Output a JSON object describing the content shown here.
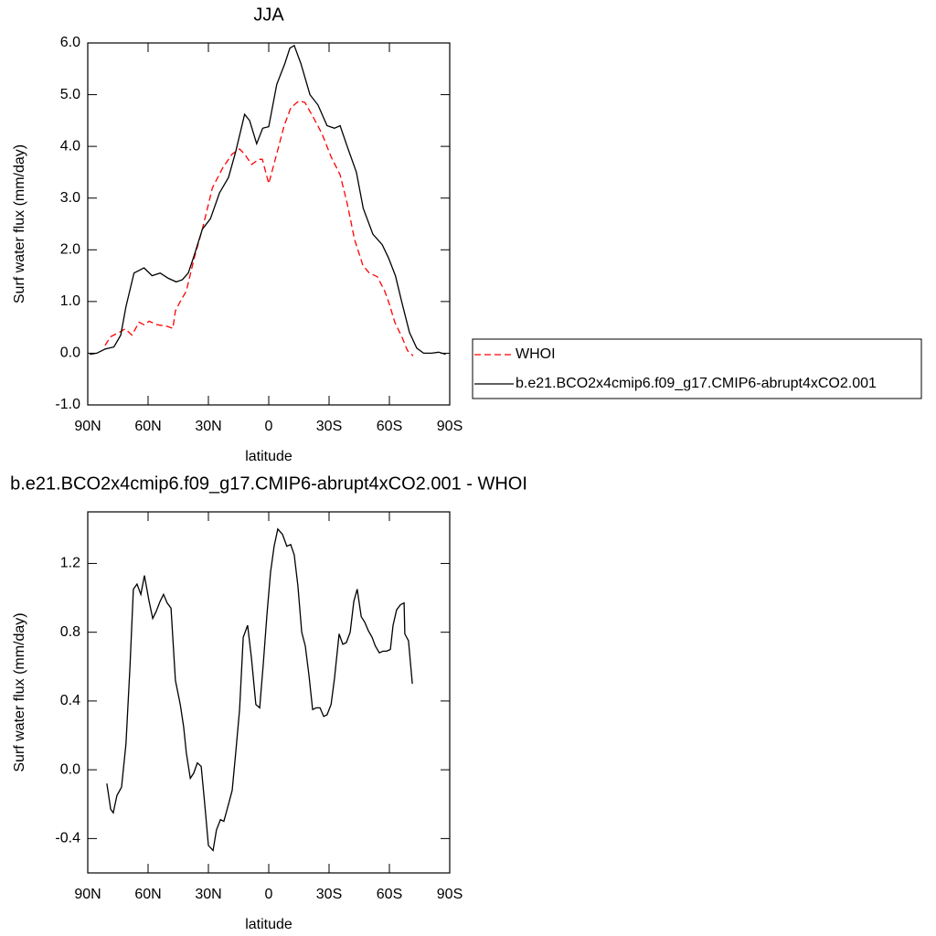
{
  "chart_data": [
    {
      "type": "line",
      "title": "JJA",
      "xlabel": "latitude",
      "ylabel": "Surf water flux (mm/day)",
      "xlim": [
        90,
        -90
      ],
      "xticks": [
        {
          "value": 90,
          "label": "90N"
        },
        {
          "value": 60,
          "label": "60N"
        },
        {
          "value": 30,
          "label": "30N"
        },
        0,
        {
          "value": -30,
          "label": "30S"
        },
        {
          "value": -60,
          "label": "60S"
        },
        {
          "value": -90,
          "label": "90S"
        }
      ],
      "ylim": [
        -1,
        6
      ],
      "yticks": [
        {
          "value": -1,
          "label": "-1.0"
        },
        {
          "value": 0,
          "label": "0.0"
        },
        {
          "value": 1,
          "label": "1.0"
        },
        {
          "value": 2,
          "label": "2.0"
        },
        {
          "value": 3,
          "label": "3.0"
        },
        {
          "value": 4,
          "label": "4.0"
        },
        {
          "value": 5,
          "label": "5.0"
        },
        {
          "value": 6,
          "label": "6.0"
        }
      ],
      "legend": "right",
      "series": [
        {
          "name": "WHOI",
          "color": "#ff0000",
          "dash": true,
          "x": [
            81.4,
            78.6,
            74.5,
            71.4,
            68,
            64.5,
            62,
            59.5,
            55.5,
            50.5,
            47.7,
            46.4,
            44,
            41,
            37,
            33,
            28,
            22.7,
            18.2,
            14.5,
            12,
            8.5,
            5,
            3.2,
            0,
            -3.6,
            -7.7,
            -11,
            -15,
            -18,
            -22.3,
            -26.4,
            -31,
            -35.5,
            -39,
            -42.7,
            -46.8,
            -50,
            -54,
            -57.7,
            -60,
            -62.7,
            -66.4,
            -69,
            -71.8
          ],
          "values": [
            0.15,
            0.32,
            0.4,
            0.47,
            0.35,
            0.6,
            0.55,
            0.62,
            0.55,
            0.52,
            0.48,
            0.82,
            1.0,
            1.2,
            1.85,
            2.4,
            3.2,
            3.6,
            3.85,
            3.95,
            3.85,
            3.65,
            3.75,
            3.75,
            3.28,
            3.8,
            4.4,
            4.75,
            4.88,
            4.85,
            4.55,
            4.25,
            3.8,
            3.45,
            2.9,
            2.2,
            1.7,
            1.55,
            1.48,
            1.2,
            0.95,
            0.6,
            0.3,
            0.05,
            -0.05
          ]
        },
        {
          "name": "b.e21.BCO2x4cmip6.f09_g17.CMIP6-abrupt4xCO2.001",
          "color": "#000000",
          "dash": false,
          "x": [
            89,
            85.5,
            81.4,
            77,
            73.6,
            71,
            67,
            62,
            58,
            54,
            50,
            46,
            43,
            40,
            37,
            33,
            29,
            24.5,
            20,
            16.4,
            12,
            9.5,
            6,
            3,
            0,
            -4,
            -8,
            -10.5,
            -12.7,
            -16,
            -20.5,
            -24.5,
            -29,
            -32.7,
            -35.5,
            -39,
            -43.6,
            -47,
            -51.8,
            -56.4,
            -59.5,
            -63,
            -66.4,
            -70,
            -73.6,
            -77,
            -81,
            -84.5,
            -88
          ],
          "values": [
            -0.02,
            0.0,
            0.08,
            0.12,
            0.35,
            0.9,
            1.55,
            1.65,
            1.5,
            1.55,
            1.45,
            1.38,
            1.42,
            1.55,
            1.9,
            2.4,
            2.6,
            3.1,
            3.4,
            3.9,
            4.62,
            4.5,
            4.05,
            4.35,
            4.38,
            5.2,
            5.6,
            5.9,
            5.95,
            5.6,
            5.0,
            4.8,
            4.4,
            4.35,
            4.4,
            4.0,
            3.5,
            2.8,
            2.3,
            2.1,
            1.85,
            1.5,
            0.95,
            0.4,
            0.1,
            0.0,
            0.0,
            0.02,
            -0.02
          ]
        }
      ]
    },
    {
      "type": "line",
      "title": "b.e21.BCO2x4cmip6.f09_g17.CMIP6-abrupt4xCO2.001 - WHOI",
      "xlabel": "latitude",
      "ylabel": "Surf water flux (mm/day)",
      "xlim": [
        90,
        -90
      ],
      "xticks": [
        {
          "value": 90,
          "label": "90N"
        },
        {
          "value": 60,
          "label": "60N"
        },
        {
          "value": 30,
          "label": "30N"
        },
        0,
        {
          "value": -30,
          "label": "30S"
        },
        {
          "value": -60,
          "label": "60S"
        },
        {
          "value": -90,
          "label": "90S"
        }
      ],
      "ylim": [
        -0.6,
        1.5
      ],
      "yticks": [
        -0.4,
        {
          "value": 0,
          "label": "0.0"
        },
        0.4,
        0.8,
        1.2
      ],
      "color": "#000000",
      "x": [
        80.5,
        78.6,
        77.3,
        75.5,
        73.2,
        71,
        69,
        67.3,
        65.5,
        63.6,
        61.8,
        59.5,
        57.7,
        56,
        54,
        52.3,
        50.5,
        48.6,
        46.4,
        44,
        42.3,
        41,
        39,
        37.3,
        35.5,
        33.6,
        31.8,
        30,
        27.7,
        26,
        24,
        22.3,
        20,
        18.2,
        16.4,
        14.5,
        12.7,
        10.5,
        8.6,
        6.4,
        4.5,
        2.7,
        0.9,
        -0.9,
        -2.7,
        -4.5,
        -6.8,
        -9,
        -10.9,
        -12.7,
        -14.5,
        -16.4,
        -18.2,
        -20,
        -21.8,
        -23.6,
        -25.5,
        -27.3,
        -29,
        -31,
        -32.7,
        -35,
        -36.8,
        -38.6,
        -40.5,
        -42.3,
        -44,
        -46,
        -47.7,
        -49.5,
        -51.4,
        -53,
        -55,
        -56.8,
        -58.6,
        -60.5,
        -61.8,
        -63.6,
        -65.5,
        -67.3,
        -67.7,
        -69.5,
        -71.4
      ],
      "values": [
        -0.08,
        -0.23,
        -0.25,
        -0.15,
        -0.1,
        0.15,
        0.6,
        1.05,
        1.08,
        1.02,
        1.13,
        0.98,
        0.88,
        0.92,
        0.98,
        1.02,
        0.97,
        0.94,
        0.52,
        0.38,
        0.25,
        0.1,
        -0.05,
        -0.02,
        0.04,
        0.02,
        -0.2,
        -0.44,
        -0.47,
        -0.35,
        -0.29,
        -0.3,
        -0.2,
        -0.12,
        0.1,
        0.35,
        0.77,
        0.84,
        0.65,
        0.38,
        0.36,
        0.62,
        0.9,
        1.15,
        1.3,
        1.4,
        1.37,
        1.3,
        1.31,
        1.25,
        1.07,
        0.8,
        0.72,
        0.55,
        0.35,
        0.36,
        0.36,
        0.31,
        0.32,
        0.38,
        0.53,
        0.79,
        0.73,
        0.74,
        0.8,
        0.98,
        1.05,
        0.89,
        0.86,
        0.81,
        0.77,
        0.72,
        0.68,
        0.69,
        0.69,
        0.7,
        0.84,
        0.93,
        0.96,
        0.97,
        0.79,
        0.75,
        0.5
      ]
    }
  ]
}
